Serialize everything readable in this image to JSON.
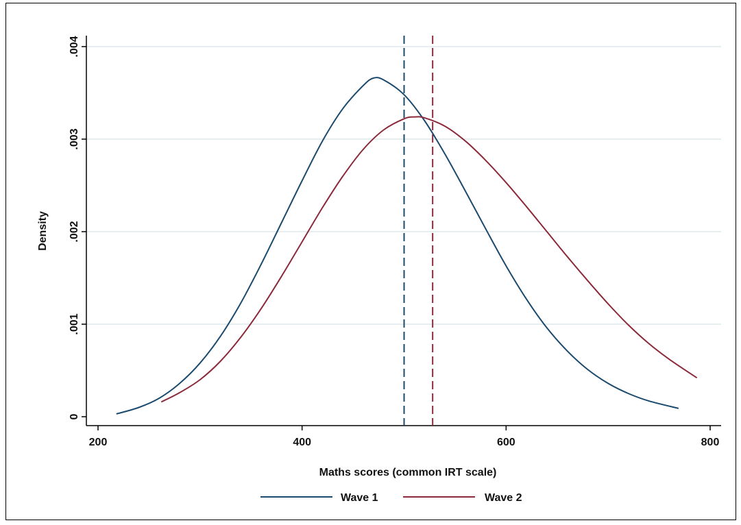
{
  "chart_data": {
    "type": "line",
    "title": "",
    "xlabel": "Maths scores (common IRT scale)",
    "ylabel": "Density",
    "xlim": [
      200,
      800
    ],
    "ylim": [
      0,
      0.004
    ],
    "x_ticks": [
      200,
      400,
      600,
      800
    ],
    "x_tick_labels": [
      "200",
      "400",
      "600",
      "800"
    ],
    "y_ticks": [
      0,
      0.001,
      0.002,
      0.003,
      0.004
    ],
    "y_tick_labels": [
      "0",
      ".001",
      ".002",
      ".003",
      ".004"
    ],
    "grid": "horizontal",
    "legend_position": "bottom",
    "series": [
      {
        "name": "Wave 1",
        "color": "#1a4a6e",
        "x": [
          218,
          240,
          260,
          280,
          300,
          320,
          340,
          360,
          380,
          400,
          420,
          440,
          460,
          470,
          480,
          500,
          520,
          540,
          560,
          580,
          600,
          620,
          640,
          660,
          680,
          700,
          720,
          740,
          769
        ],
        "y": [
          3e-05,
          0.0001,
          0.0002,
          0.00036,
          0.00058,
          0.00087,
          0.00123,
          0.00165,
          0.0021,
          0.00255,
          0.00298,
          0.00333,
          0.00358,
          0.00366,
          0.00364,
          0.00348,
          0.0032,
          0.00284,
          0.00244,
          0.00203,
          0.00163,
          0.00127,
          0.00096,
          0.00071,
          0.00051,
          0.00036,
          0.00025,
          0.00017,
          9e-05
        ]
      },
      {
        "name": "Wave 2",
        "color": "#8b2a3a",
        "x": [
          262,
          280,
          300,
          320,
          340,
          360,
          380,
          400,
          420,
          440,
          460,
          480,
          500,
          510,
          520,
          540,
          560,
          580,
          600,
          620,
          640,
          660,
          680,
          700,
          720,
          740,
          760,
          787
        ],
        "y": [
          0.00016,
          0.00026,
          0.0004,
          0.0006,
          0.00086,
          0.00117,
          0.00152,
          0.00189,
          0.00226,
          0.0026,
          0.00289,
          0.0031,
          0.00322,
          0.00324,
          0.00323,
          0.00314,
          0.00298,
          0.00277,
          0.00253,
          0.00227,
          0.002,
          0.00173,
          0.00147,
          0.00122,
          0.00099,
          0.00079,
          0.00062,
          0.00042
        ]
      }
    ],
    "reference_lines": [
      {
        "x": 500,
        "color": "#1a4a6e",
        "style": "dashed",
        "series": "Wave 1"
      },
      {
        "x": 528,
        "color": "#8b2a3a",
        "style": "dashed",
        "series": "Wave 2"
      }
    ]
  }
}
